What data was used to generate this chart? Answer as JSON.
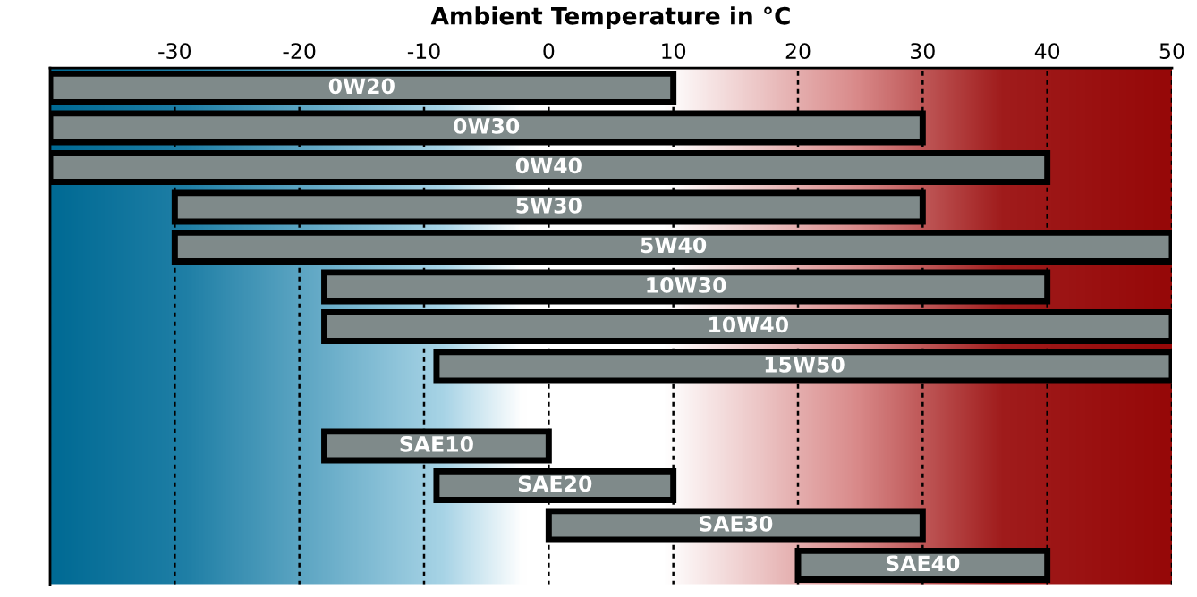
{
  "chart_data": {
    "type": "bar",
    "orientation": "horizontal",
    "title": "Ambient Temperature in °C",
    "categories": [
      "0W20",
      "0W30",
      "0W40",
      "5W30",
      "5W40",
      "10W30",
      "10W40",
      "15W50",
      null,
      "SAE10",
      "SAE20",
      "SAE30",
      "SAE40"
    ],
    "base": [
      -40,
      -40,
      -40,
      -30,
      -30,
      -18,
      -18,
      -9,
      null,
      -18,
      -9,
      0,
      20
    ],
    "values": [
      50,
      70,
      80,
      60,
      80,
      58,
      68,
      59,
      null,
      18,
      19,
      30,
      20
    ],
    "color": "#7f8a8a",
    "xlim": [
      -40,
      50
    ],
    "xticks": [
      -30,
      -20,
      -10,
      0,
      10,
      20,
      30,
      40,
      50
    ],
    "grid": "x",
    "tick_labels": "x",
    "legend": false
  }
}
